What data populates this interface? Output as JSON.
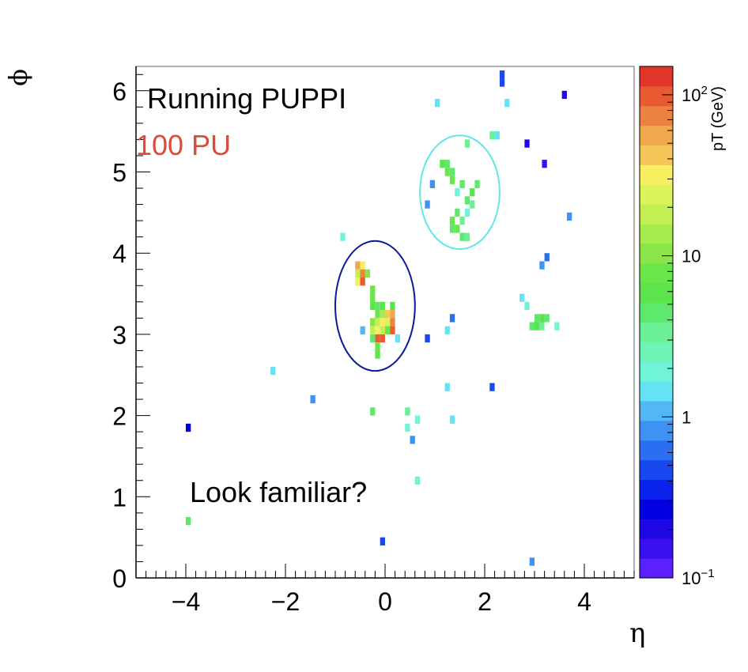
{
  "chart_data": {
    "type": "heatmap",
    "title": "Running PUPPI",
    "subtitle": "100 PU",
    "annotation": "Look familiar?",
    "xlabel": "η",
    "ylabel": "ϕ",
    "zlabel": "pT (GeV)",
    "xlim": [
      -5,
      5
    ],
    "ylim": [
      0,
      6.3
    ],
    "zlim": [
      0.1,
      150
    ],
    "z_scale": "log",
    "x_ticks": [
      {
        "v": -4,
        "label": "−4"
      },
      {
        "v": -2,
        "label": "−2"
      },
      {
        "v": 0,
        "label": "0"
      },
      {
        "v": 2,
        "label": "2"
      },
      {
        "v": 4,
        "label": "4"
      }
    ],
    "y_ticks": [
      {
        "v": 0,
        "label": "0"
      },
      {
        "v": 1,
        "label": "1"
      },
      {
        "v": 2,
        "label": "2"
      },
      {
        "v": 3,
        "label": "3"
      },
      {
        "v": 4,
        "label": "4"
      },
      {
        "v": 5,
        "label": "5"
      },
      {
        "v": 6,
        "label": "6"
      }
    ],
    "z_ticks": [
      {
        "v": 0.1,
        "base": "10",
        "exp": "−1"
      },
      {
        "v": 1,
        "label": "1"
      },
      {
        "v": 10,
        "label": "10"
      },
      {
        "v": 100,
        "base": "10",
        "exp": "2"
      }
    ],
    "cell_size": [
      0.1,
      0.1
    ],
    "cells": [
      {
        "x": 2.35,
        "y": 6.2,
        "z": 0.45
      },
      {
        "x": 2.35,
        "y": 6.1,
        "z": 0.45
      },
      {
        "x": 3.6,
        "y": 5.95,
        "z": 0.2
      },
      {
        "x": 1.05,
        "y": 5.85,
        "z": 1.5
      },
      {
        "x": 2.45,
        "y": 5.85,
        "z": 1.5
      },
      {
        "x": 2.15,
        "y": 5.45,
        "z": 3
      },
      {
        "x": 2.25,
        "y": 5.45,
        "z": 1.3
      },
      {
        "x": 2.85,
        "y": 5.35,
        "z": 0.18
      },
      {
        "x": 1.65,
        "y": 5.35,
        "z": 3
      },
      {
        "x": 1.15,
        "y": 5.1,
        "z": 6
      },
      {
        "x": 1.25,
        "y": 5.1,
        "z": 4
      },
      {
        "x": 3.2,
        "y": 5.1,
        "z": 0.15
      },
      {
        "x": 1.25,
        "y": 5.0,
        "z": 8
      },
      {
        "x": 1.35,
        "y": 5.0,
        "z": 5
      },
      {
        "x": 1.35,
        "y": 4.9,
        "z": 7
      },
      {
        "x": 0.95,
        "y": 4.85,
        "z": 0.8
      },
      {
        "x": 1.55,
        "y": 4.85,
        "z": 5
      },
      {
        "x": 1.85,
        "y": 4.85,
        "z": 5
      },
      {
        "x": 1.45,
        "y": 4.75,
        "z": 2
      },
      {
        "x": 1.75,
        "y": 4.75,
        "z": 6
      },
      {
        "x": 1.65,
        "y": 4.65,
        "z": 4
      },
      {
        "x": 0.85,
        "y": 4.6,
        "z": 0.8
      },
      {
        "x": 1.75,
        "y": 4.6,
        "z": 3
      },
      {
        "x": 1.45,
        "y": 4.5,
        "z": 5
      },
      {
        "x": 1.65,
        "y": 4.5,
        "z": 2
      },
      {
        "x": 3.7,
        "y": 4.45,
        "z": 0.9
      },
      {
        "x": 1.35,
        "y": 4.4,
        "z": 7
      },
      {
        "x": 1.55,
        "y": 4.4,
        "z": 3
      },
      {
        "x": 1.35,
        "y": 4.3,
        "z": 5
      },
      {
        "x": 1.45,
        "y": 4.3,
        "z": 9
      },
      {
        "x": 1.55,
        "y": 4.2,
        "z": 4
      },
      {
        "x": 1.65,
        "y": 4.2,
        "z": 3
      },
      {
        "x": -0.85,
        "y": 4.2,
        "z": 2
      },
      {
        "x": 3.25,
        "y": 3.95,
        "z": 0.7
      },
      {
        "x": 3.15,
        "y": 3.85,
        "z": 0.9
      },
      {
        "x": -0.55,
        "y": 3.85,
        "z": 50
      },
      {
        "x": -0.45,
        "y": 3.85,
        "z": 30
      },
      {
        "x": -0.55,
        "y": 3.75,
        "z": 20
      },
      {
        "x": -0.45,
        "y": 3.75,
        "z": 80
      },
      {
        "x": -0.35,
        "y": 3.75,
        "z": 10
      },
      {
        "x": -0.55,
        "y": 3.65,
        "z": 30
      },
      {
        "x": -0.45,
        "y": 3.65,
        "z": 100
      },
      {
        "x": -0.25,
        "y": 3.55,
        "z": 8
      },
      {
        "x": -0.25,
        "y": 3.45,
        "z": 8
      },
      {
        "x": -0.25,
        "y": 3.35,
        "z": 6
      },
      {
        "x": -0.15,
        "y": 3.35,
        "z": 5
      },
      {
        "x": 2.75,
        "y": 3.45,
        "z": 1.5
      },
      {
        "x": 2.85,
        "y": 3.35,
        "z": 2
      },
      {
        "x": -0.05,
        "y": 3.35,
        "z": 6
      },
      {
        "x": 0.15,
        "y": 3.35,
        "z": 6
      },
      {
        "x": -0.15,
        "y": 3.25,
        "z": 8
      },
      {
        "x": -0.05,
        "y": 3.25,
        "z": 12
      },
      {
        "x": 0.05,
        "y": 3.25,
        "z": 40
      },
      {
        "x": 0.15,
        "y": 3.25,
        "z": 60
      },
      {
        "x": -0.25,
        "y": 3.15,
        "z": 10
      },
      {
        "x": -0.15,
        "y": 3.15,
        "z": 20
      },
      {
        "x": -0.05,
        "y": 3.15,
        "z": 30
      },
      {
        "x": 0.05,
        "y": 3.15,
        "z": 25
      },
      {
        "x": 0.15,
        "y": 3.15,
        "z": 80
      },
      {
        "x": 1.35,
        "y": 3.2,
        "z": 0.6
      },
      {
        "x": 3.05,
        "y": 3.2,
        "z": 5
      },
      {
        "x": 3.15,
        "y": 3.2,
        "z": 6
      },
      {
        "x": 3.25,
        "y": 3.2,
        "z": 4
      },
      {
        "x": -0.45,
        "y": 3.05,
        "z": 1
      },
      {
        "x": -0.25,
        "y": 3.05,
        "z": 20
      },
      {
        "x": -0.15,
        "y": 3.05,
        "z": 30
      },
      {
        "x": -0.05,
        "y": 3.05,
        "z": 20
      },
      {
        "x": 0.05,
        "y": 3.05,
        "z": 8
      },
      {
        "x": 0.15,
        "y": 3.05,
        "z": 100
      },
      {
        "x": 1.25,
        "y": 3.05,
        "z": 1.5
      },
      {
        "x": 2.95,
        "y": 3.1,
        "z": 5
      },
      {
        "x": 3.05,
        "y": 3.1,
        "z": 6
      },
      {
        "x": 3.15,
        "y": 3.1,
        "z": 3
      },
      {
        "x": 3.45,
        "y": 3.1,
        "z": 1.8
      },
      {
        "x": -0.15,
        "y": 2.95,
        "z": 90
      },
      {
        "x": -0.05,
        "y": 2.95,
        "z": 100
      },
      {
        "x": -0.25,
        "y": 2.95,
        "z": 4
      },
      {
        "x": 0.25,
        "y": 2.95,
        "z": 1.5
      },
      {
        "x": 0.85,
        "y": 2.95,
        "z": 0.5
      },
      {
        "x": -0.15,
        "y": 2.85,
        "z": 8
      },
      {
        "x": -0.15,
        "y": 2.75,
        "z": 6
      },
      {
        "x": -2.25,
        "y": 2.55,
        "z": 1.5
      },
      {
        "x": 1.25,
        "y": 2.35,
        "z": 1.5
      },
      {
        "x": 2.15,
        "y": 2.35,
        "z": 0.5
      },
      {
        "x": -1.45,
        "y": 2.2,
        "z": 0.8
      },
      {
        "x": -0.25,
        "y": 2.05,
        "z": 4
      },
      {
        "x": 0.45,
        "y": 2.05,
        "z": 3
      },
      {
        "x": 0.65,
        "y": 1.95,
        "z": 2
      },
      {
        "x": 1.35,
        "y": 1.95,
        "z": 1.5
      },
      {
        "x": -3.95,
        "y": 1.85,
        "z": 0.3
      },
      {
        "x": 0.45,
        "y": 1.85,
        "z": 2
      },
      {
        "x": 0.55,
        "y": 1.7,
        "z": 0.8
      },
      {
        "x": 0.65,
        "y": 1.2,
        "z": 2
      },
      {
        "x": -3.95,
        "y": 0.7,
        "z": 4
      },
      {
        "x": -0.05,
        "y": 0.45,
        "z": 0.5
      },
      {
        "x": 2.95,
        "y": 0.2,
        "z": 0.8
      }
    ],
    "ellipses": [
      {
        "cx": -0.2,
        "cy": 3.35,
        "rx": 0.8,
        "ry": 0.8,
        "color": "#0a1a9a"
      },
      {
        "cx": 1.5,
        "cy": 4.75,
        "rx": 0.8,
        "ry": 0.7,
        "color": "#5fe6ea"
      }
    ],
    "palette": [
      "#5a20ff",
      "#3a10ee",
      "#1f08e6",
      "#0000e0",
      "#0a22ee",
      "#1848f0",
      "#2a6ff2",
      "#3d92f4",
      "#54b7f5",
      "#63e3f3",
      "#6ff4d8",
      "#6ef4b6",
      "#6cf096",
      "#5ee96c",
      "#5be44c",
      "#6ae64a",
      "#8be448",
      "#a6ec4c",
      "#c2ef52",
      "#dcf35a",
      "#f6f061",
      "#f6c758",
      "#f0a84e",
      "#ec8240",
      "#e95a33",
      "#e2362b"
    ]
  },
  "colors": {
    "title_text": "#000000",
    "subtitle_text": "#dc4c3a",
    "axis": "#000000",
    "frame": "#666666"
  }
}
